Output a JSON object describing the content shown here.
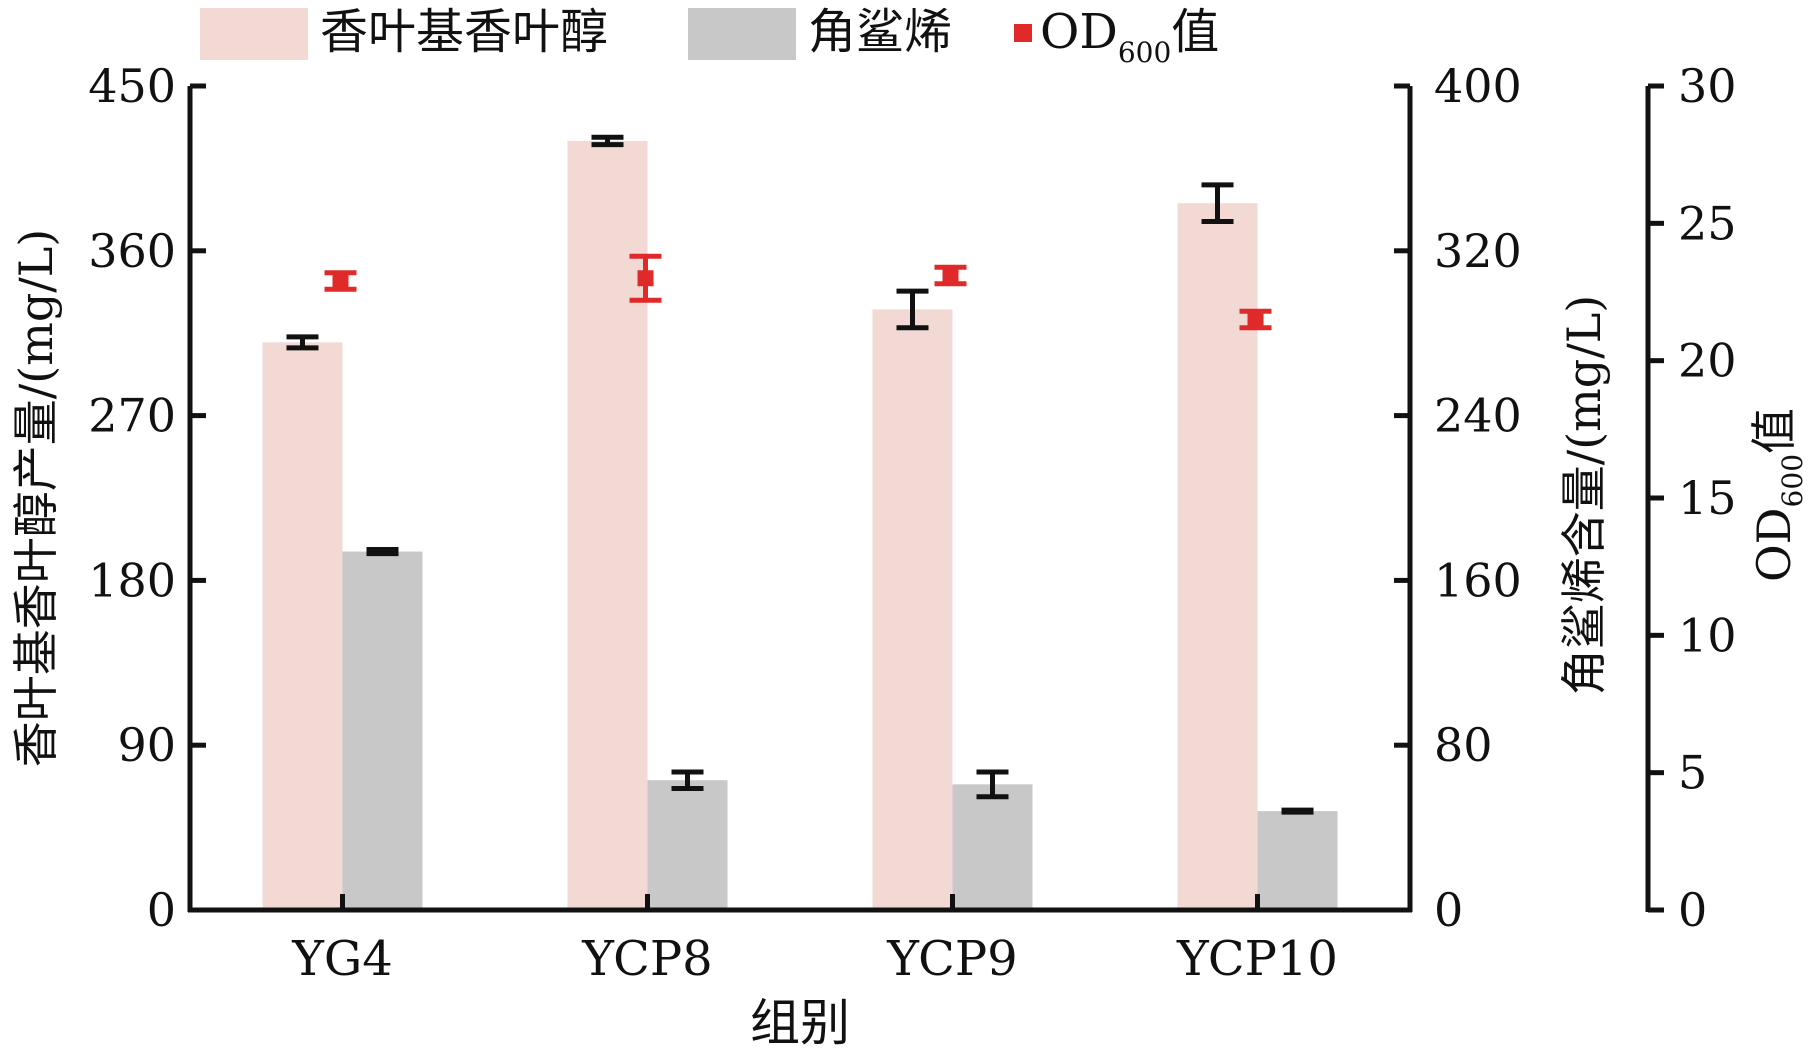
{
  "chart_data": {
    "type": "bar",
    "title": "",
    "xlabel": "组别",
    "categories": [
      "YG4",
      "YCP8",
      "YCP9",
      "YCP10"
    ],
    "legend": {
      "placement": "top-left",
      "items": [
        {
          "key": "geraniol",
          "label": "香叶基香叶醇",
          "marker": "rect-swatch"
        },
        {
          "key": "squalene",
          "label": "角鲨烯",
          "marker": "rect-swatch"
        },
        {
          "key": "od",
          "label_main": "OD",
          "label_sub": "600",
          "label_tail": "值",
          "marker": "square"
        }
      ]
    },
    "axes": {
      "left": {
        "label": "香叶基香叶醇产量/(mg/L)",
        "ylim": [
          0,
          450
        ],
        "ticks": [
          0,
          90,
          180,
          270,
          360,
          450
        ]
      },
      "right1": {
        "label": "角鲨烯含量/(mg/L)",
        "ylim": [
          0,
          400
        ],
        "ticks": [
          0,
          80,
          160,
          240,
          320,
          400
        ]
      },
      "right2": {
        "label_main": "OD",
        "label_sub": "600",
        "label_tail": "值",
        "ylim": [
          0,
          30
        ],
        "ticks": [
          0,
          5,
          10,
          15,
          20,
          25,
          30
        ]
      }
    },
    "series": [
      {
        "key": "geraniol",
        "name": "香叶基香叶醇",
        "axis": "left",
        "kind": "bar",
        "color": "#f2d9d4",
        "values": [
          310,
          420,
          328,
          386
        ],
        "errors": [
          3,
          2,
          10,
          10
        ]
      },
      {
        "key": "squalene",
        "name": "角鲨烯",
        "axis": "right1",
        "kind": "bar",
        "color": "#c8c8c8",
        "values": [
          174,
          63,
          61,
          48
        ],
        "errors": [
          1,
          4,
          6,
          0.5
        ]
      },
      {
        "key": "od",
        "name": "OD600值",
        "axis": "right2",
        "kind": "point",
        "color": "#e02a2a",
        "values": [
          22.9,
          23.0,
          23.1,
          21.5
        ],
        "errors": [
          0.3,
          0.8,
          0.3,
          0.3
        ]
      }
    ],
    "grid": false
  }
}
